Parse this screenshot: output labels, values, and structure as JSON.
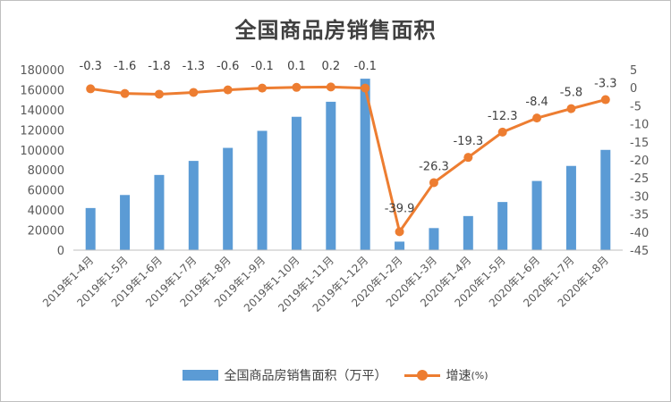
{
  "colors": {
    "bar": "#5b9bd5",
    "line": "#ed7d31",
    "grid": "#d9d9d9",
    "axis": "#bfbfbf"
  },
  "chart_data": {
    "type": "bar+line",
    "title": "全国商品房销售面积",
    "categories": [
      "2019年1-4月",
      "2019年1-5月",
      "2019年1-6月",
      "2019年1-7月",
      "2019年1-8月",
      "2019年1-9月",
      "2019年1-10月",
      "2019年1-11月",
      "2019年1-12月",
      "2020年1-2月",
      "2020年1-3月",
      "2020年1-4月",
      "2020年1-5月",
      "2020年1-6月",
      "2020年1-7月",
      "2020年1-8月"
    ],
    "series": [
      {
        "name": "全国商品房销售面积（万平）",
        "type": "bar",
        "axis": "left",
        "values": [
          42000,
          55000,
          75000,
          89000,
          102000,
          119000,
          133000,
          148000,
          171000,
          8500,
          22000,
          34000,
          48000,
          69000,
          84000,
          100000
        ]
      },
      {
        "name": "增速",
        "unit_label": "(%)",
        "type": "line",
        "axis": "right",
        "values": [
          -0.3,
          -1.6,
          -1.8,
          -1.3,
          -0.6,
          -0.1,
          0.1,
          0.2,
          -0.1,
          -39.9,
          -26.3,
          -19.3,
          -12.3,
          -8.4,
          -5.8,
          -3.3
        ],
        "labels": [
          "-0.3",
          "-1.6",
          "-1.8",
          "-1.3",
          "-0.6",
          "-0.1",
          "0.1",
          "0.2",
          "-0.1",
          "-39.9",
          "-26.3",
          "-19.3",
          "-12.3",
          "-8.4",
          "-5.8",
          "-3.3"
        ]
      }
    ],
    "y_left": {
      "min": 0,
      "max": 180000,
      "step": 20000,
      "ticks": [
        "0",
        "20000",
        "40000",
        "60000",
        "80000",
        "100000",
        "120000",
        "140000",
        "160000",
        "180000"
      ]
    },
    "y_right": {
      "min": -45,
      "max": 5,
      "step": 5,
      "ticks": [
        "-45",
        "-40",
        "-35",
        "-30",
        "-25",
        "-20",
        "-15",
        "-10",
        "-5",
        "0",
        "5"
      ]
    },
    "grid": false,
    "legend_position": "bottom"
  },
  "legend": {
    "bar_label": "全国商品房销售面积（万平）",
    "line_label": "增速",
    "line_unit": "(%)"
  }
}
